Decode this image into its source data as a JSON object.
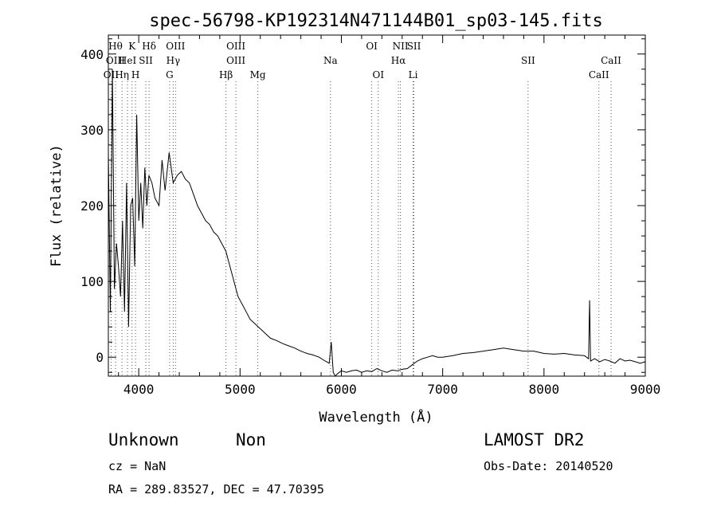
{
  "chart_data": {
    "type": "line",
    "title": "spec-56798-KP192314N471144B01_sp03-145.fits",
    "xlabel": "Wavelength (Å)",
    "ylabel": "Flux (relative)",
    "xlim": [
      3700,
      9000
    ],
    "ylim": [
      -25,
      425
    ],
    "x_ticks": [
      4000,
      5000,
      6000,
      7000,
      8000,
      9000
    ],
    "y_ticks": [
      0,
      100,
      200,
      300,
      400
    ],
    "grid": false,
    "line_color": "#000000",
    "spectrum": {
      "x": [
        3700,
        3720,
        3740,
        3760,
        3780,
        3800,
        3820,
        3840,
        3860,
        3880,
        3900,
        3920,
        3940,
        3960,
        3980,
        4000,
        4020,
        4040,
        4060,
        4080,
        4100,
        4130,
        4160,
        4200,
        4230,
        4260,
        4300,
        4340,
        4380,
        4420,
        4460,
        4500,
        4540,
        4580,
        4620,
        4660,
        4700,
        4740,
        4780,
        4820,
        4860,
        4900,
        4940,
        4980,
        5020,
        5060,
        5100,
        5140,
        5180,
        5220,
        5260,
        5300,
        5360,
        5420,
        5480,
        5540,
        5600,
        5660,
        5720,
        5780,
        5840,
        5880,
        5900,
        5920,
        5940,
        5960,
        6000,
        6050,
        6100,
        6150,
        6200,
        6250,
        6300,
        6350,
        6400,
        6450,
        6500,
        6550,
        6600,
        6650,
        6700,
        6750,
        6800,
        6850,
        6900,
        6950,
        7000,
        7100,
        7200,
        7300,
        7400,
        7500,
        7600,
        7700,
        7800,
        7900,
        8000,
        8100,
        8200,
        8300,
        8400,
        8440,
        8450,
        8460,
        8500,
        8550,
        8600,
        8650,
        8700,
        8750,
        8800,
        8850,
        8900,
        8950,
        9000
      ],
      "y": [
        270,
        60,
        380,
        90,
        150,
        120,
        80,
        180,
        60,
        230,
        40,
        200,
        210,
        120,
        320,
        180,
        230,
        170,
        250,
        200,
        240,
        230,
        210,
        200,
        260,
        220,
        270,
        230,
        240,
        245,
        235,
        230,
        215,
        200,
        190,
        180,
        175,
        165,
        160,
        150,
        140,
        120,
        100,
        80,
        70,
        60,
        50,
        45,
        40,
        35,
        30,
        25,
        22,
        18,
        15,
        12,
        8,
        5,
        3,
        0,
        -5,
        -8,
        20,
        -20,
        -25,
        -22,
        -18,
        -20,
        -18,
        -17,
        -20,
        -18,
        -19,
        -15,
        -18,
        -20,
        -17,
        -18,
        -16,
        -15,
        -10,
        -5,
        -2,
        0,
        2,
        0,
        0,
        2,
        5,
        6,
        8,
        10,
        12,
        10,
        8,
        8,
        5,
        4,
        5,
        3,
        2,
        -2,
        75,
        -5,
        -2,
        -6,
        -3,
        -5,
        -8,
        -2,
        -5,
        -4,
        -6,
        -8,
        -6
      ]
    },
    "line_labels": [
      {
        "label": "OII",
        "x": 3727,
        "row": 2
      },
      {
        "label": "Hθ",
        "x": 3771,
        "row": 0
      },
      {
        "label": "OIII",
        "x": 3770,
        "row": 1
      },
      {
        "label": "Hη",
        "x": 3835,
        "row": 2
      },
      {
        "label": "HeI",
        "x": 3889,
        "row": 1
      },
      {
        "label": "K",
        "x": 3934,
        "row": 0
      },
      {
        "label": "H",
        "x": 3968,
        "row": 2
      },
      {
        "label": "SII",
        "x": 4070,
        "row": 1
      },
      {
        "label": "Hδ",
        "x": 4102,
        "row": 0
      },
      {
        "label": "OIII",
        "x": 4363,
        "row": 0
      },
      {
        "label": "Hγ",
        "x": 4340,
        "row": 1
      },
      {
        "label": "G",
        "x": 4305,
        "row": 2
      },
      {
        "label": "Hβ",
        "x": 4861,
        "row": 2
      },
      {
        "label": "OIII",
        "x": 4959,
        "row": 0
      },
      {
        "label": "OIII",
        "x": 4959,
        "row": 1
      },
      {
        "label": "Mg",
        "x": 5175,
        "row": 2
      },
      {
        "label": "Na",
        "x": 5893,
        "row": 1
      },
      {
        "label": "OI",
        "x": 6300,
        "row": 0
      },
      {
        "label": "OI",
        "x": 6364,
        "row": 2
      },
      {
        "label": "NII",
        "x": 6583,
        "row": 0
      },
      {
        "label": "SII",
        "x": 6716,
        "row": 0
      },
      {
        "label": "Hα",
        "x": 6563,
        "row": 1
      },
      {
        "label": "Li",
        "x": 6708,
        "row": 2
      },
      {
        "label": "SII",
        "x": 7843,
        "row": 1
      },
      {
        "label": "CaII",
        "x": 8662,
        "row": 1
      },
      {
        "label": "CaII",
        "x": 8542,
        "row": 2
      }
    ]
  },
  "info": {
    "class": "Unknown",
    "subclass": "Non",
    "survey": "LAMOST DR2",
    "cz": "cz = NaN",
    "obs_date": "Obs-Date: 20140520",
    "coords": "RA = 289.83527, DEC =  47.70395"
  }
}
